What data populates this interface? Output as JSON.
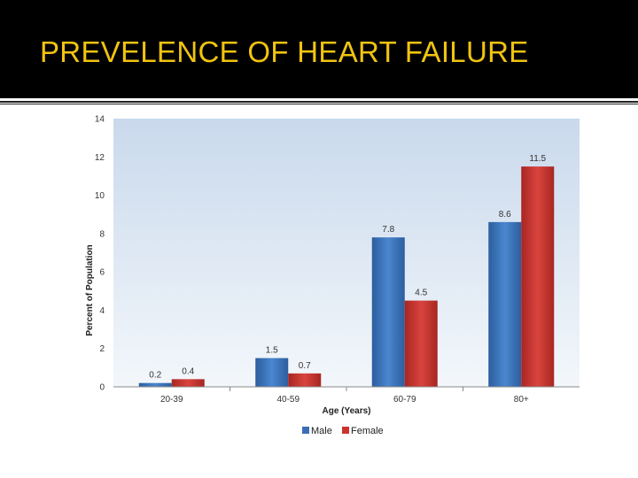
{
  "slide": {
    "title": "PREVELENCE OF HEART FAILURE"
  },
  "colors": {
    "header_bg": "#000000",
    "title": "#f1c40f",
    "male": "#3a6fb5",
    "female": "#c9342f",
    "plot_bg": "#dbe6f2"
  },
  "chart_data": {
    "type": "bar",
    "categories": [
      "20-39",
      "40-59",
      "60-79",
      "80+"
    ],
    "series": [
      {
        "name": "Male",
        "values": [
          0.2,
          1.5,
          7.8,
          8.6
        ],
        "color": "#3a6fb5"
      },
      {
        "name": "Female",
        "values": [
          0.4,
          0.7,
          4.5,
          11.5
        ],
        "color": "#c9342f"
      }
    ],
    "xlabel": "Age (Years)",
    "ylabel": "Percent of Population",
    "ylim": [
      0,
      14
    ],
    "yticks": [
      0,
      2,
      4,
      6,
      8,
      10,
      12,
      14
    ],
    "grid": false,
    "legend": "bottom"
  }
}
